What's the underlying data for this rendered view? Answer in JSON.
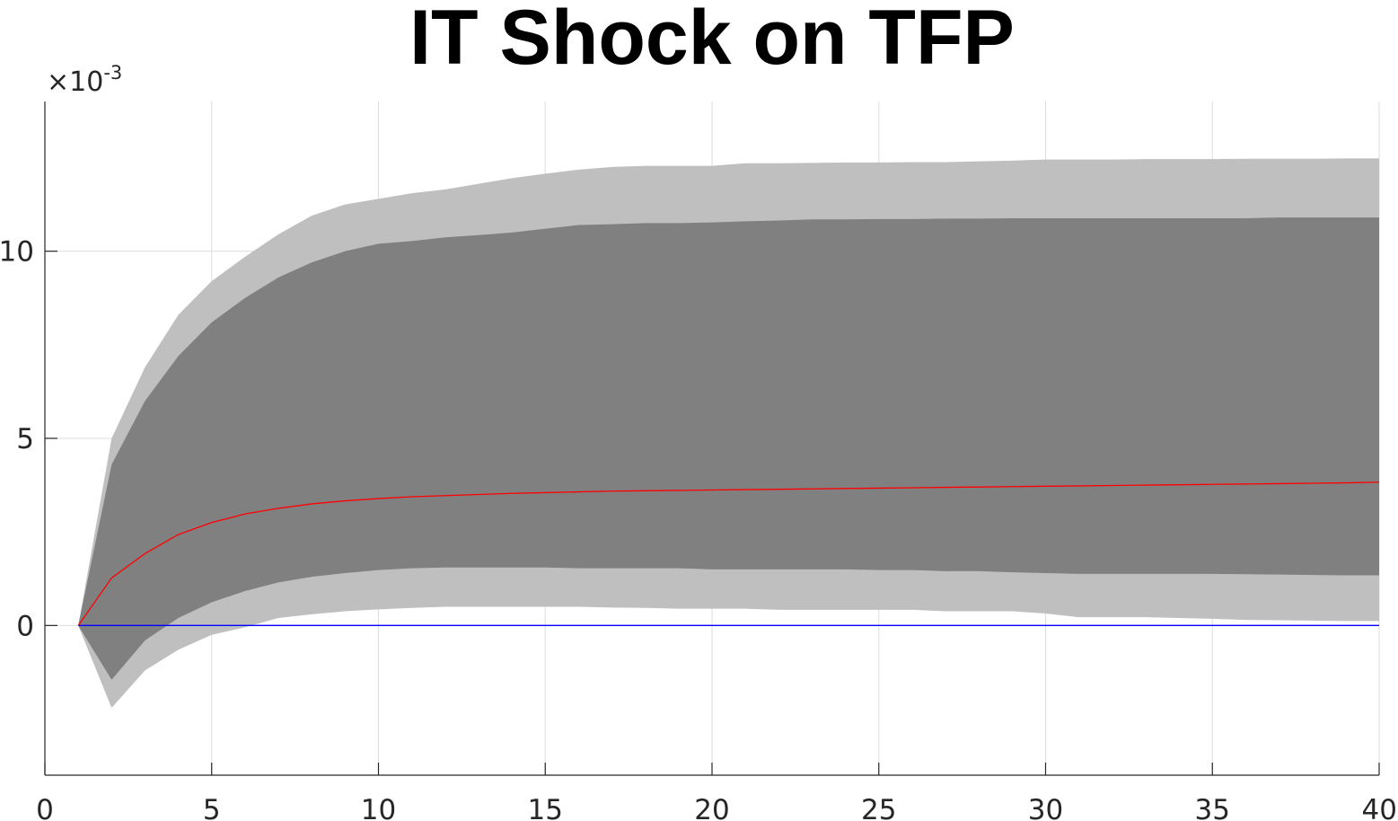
{
  "chart_data": {
    "type": "area",
    "title": "IT Shock on TFP",
    "xlabel": "",
    "ylabel": "",
    "y_multiplier_base": "×10",
    "y_multiplier_exponent": "-3",
    "xlim": [
      0,
      40
    ],
    "ylim": [
      -4,
      14
    ],
    "grid": true,
    "legend": "none",
    "x_ticks": [
      "0",
      "5",
      "10",
      "15",
      "20",
      "25",
      "30",
      "35",
      "40"
    ],
    "y_ticks": [
      "0",
      "5",
      "10"
    ],
    "x_tick_values": [
      0,
      5,
      10,
      15,
      20,
      25,
      30,
      35,
      40
    ],
    "y_tick_values": [
      0,
      5,
      10
    ],
    "x": [
      1,
      2,
      3,
      4,
      5,
      6,
      7,
      8,
      9,
      10,
      11,
      12,
      13,
      14,
      15,
      16,
      17,
      18,
      19,
      20,
      21,
      22,
      23,
      24,
      25,
      26,
      27,
      28,
      29,
      30,
      31,
      32,
      33,
      34,
      35,
      36,
      37,
      38,
      39,
      40
    ],
    "outer_band": {
      "color": "#bfbfbf",
      "upper": [
        0,
        5.0,
        6.9,
        8.3,
        9.2,
        9.85,
        10.45,
        10.95,
        11.25,
        11.4,
        11.55,
        11.65,
        11.8,
        11.95,
        12.07,
        12.18,
        12.25,
        12.28,
        12.28,
        12.28,
        12.35,
        12.35,
        12.36,
        12.37,
        12.37,
        12.38,
        12.38,
        12.4,
        12.42,
        12.45,
        12.45,
        12.45,
        12.46,
        12.46,
        12.46,
        12.47,
        12.47,
        12.47,
        12.48,
        12.48
      ],
      "lower": [
        0,
        -2.2,
        -1.2,
        -0.65,
        -0.25,
        -0.05,
        0.2,
        0.3,
        0.38,
        0.43,
        0.47,
        0.5,
        0.5,
        0.5,
        0.5,
        0.5,
        0.48,
        0.47,
        0.45,
        0.45,
        0.45,
        0.42,
        0.42,
        0.42,
        0.42,
        0.42,
        0.38,
        0.38,
        0.38,
        0.32,
        0.22,
        0.22,
        0.22,
        0.2,
        0.18,
        0.15,
        0.14,
        0.13,
        0.12,
        0.12
      ]
    },
    "inner_band": {
      "color": "#808080",
      "upper": [
        0,
        4.3,
        6.0,
        7.2,
        8.1,
        8.75,
        9.3,
        9.7,
        10.0,
        10.2,
        10.27,
        10.37,
        10.43,
        10.5,
        10.6,
        10.7,
        10.72,
        10.75,
        10.75,
        10.77,
        10.8,
        10.82,
        10.85,
        10.85,
        10.86,
        10.86,
        10.87,
        10.87,
        10.88,
        10.88,
        10.88,
        10.88,
        10.88,
        10.88,
        10.88,
        10.88,
        10.9,
        10.9,
        10.9,
        10.9
      ],
      "lower": [
        0,
        -1.45,
        -0.4,
        0.2,
        0.62,
        0.92,
        1.15,
        1.3,
        1.4,
        1.48,
        1.53,
        1.55,
        1.55,
        1.55,
        1.55,
        1.53,
        1.53,
        1.53,
        1.53,
        1.5,
        1.5,
        1.5,
        1.5,
        1.5,
        1.48,
        1.48,
        1.45,
        1.45,
        1.42,
        1.4,
        1.38,
        1.38,
        1.38,
        1.38,
        1.38,
        1.37,
        1.36,
        1.35,
        1.34,
        1.34
      ]
    },
    "series": [
      {
        "color": "#ff0000",
        "values": [
          0,
          1.27,
          1.92,
          2.43,
          2.75,
          2.98,
          3.13,
          3.25,
          3.33,
          3.39,
          3.44,
          3.47,
          3.5,
          3.53,
          3.55,
          3.57,
          3.59,
          3.6,
          3.61,
          3.62,
          3.63,
          3.64,
          3.65,
          3.66,
          3.67,
          3.68,
          3.69,
          3.7,
          3.71,
          3.72,
          3.73,
          3.74,
          3.75,
          3.76,
          3.77,
          3.78,
          3.79,
          3.8,
          3.81,
          3.83
        ]
      },
      {
        "color": "#0000ff",
        "values": [
          0,
          0,
          0,
          0,
          0,
          0,
          0,
          0,
          0,
          0,
          0,
          0,
          0,
          0,
          0,
          0,
          0,
          0,
          0,
          0,
          0,
          0,
          0,
          0,
          0,
          0,
          0,
          0,
          0,
          0,
          0,
          0,
          0,
          0,
          0,
          0,
          0,
          0,
          0,
          0
        ]
      }
    ],
    "colors": {
      "grid": "#dddddd",
      "axis": "#262626",
      "title": "#000000"
    }
  }
}
